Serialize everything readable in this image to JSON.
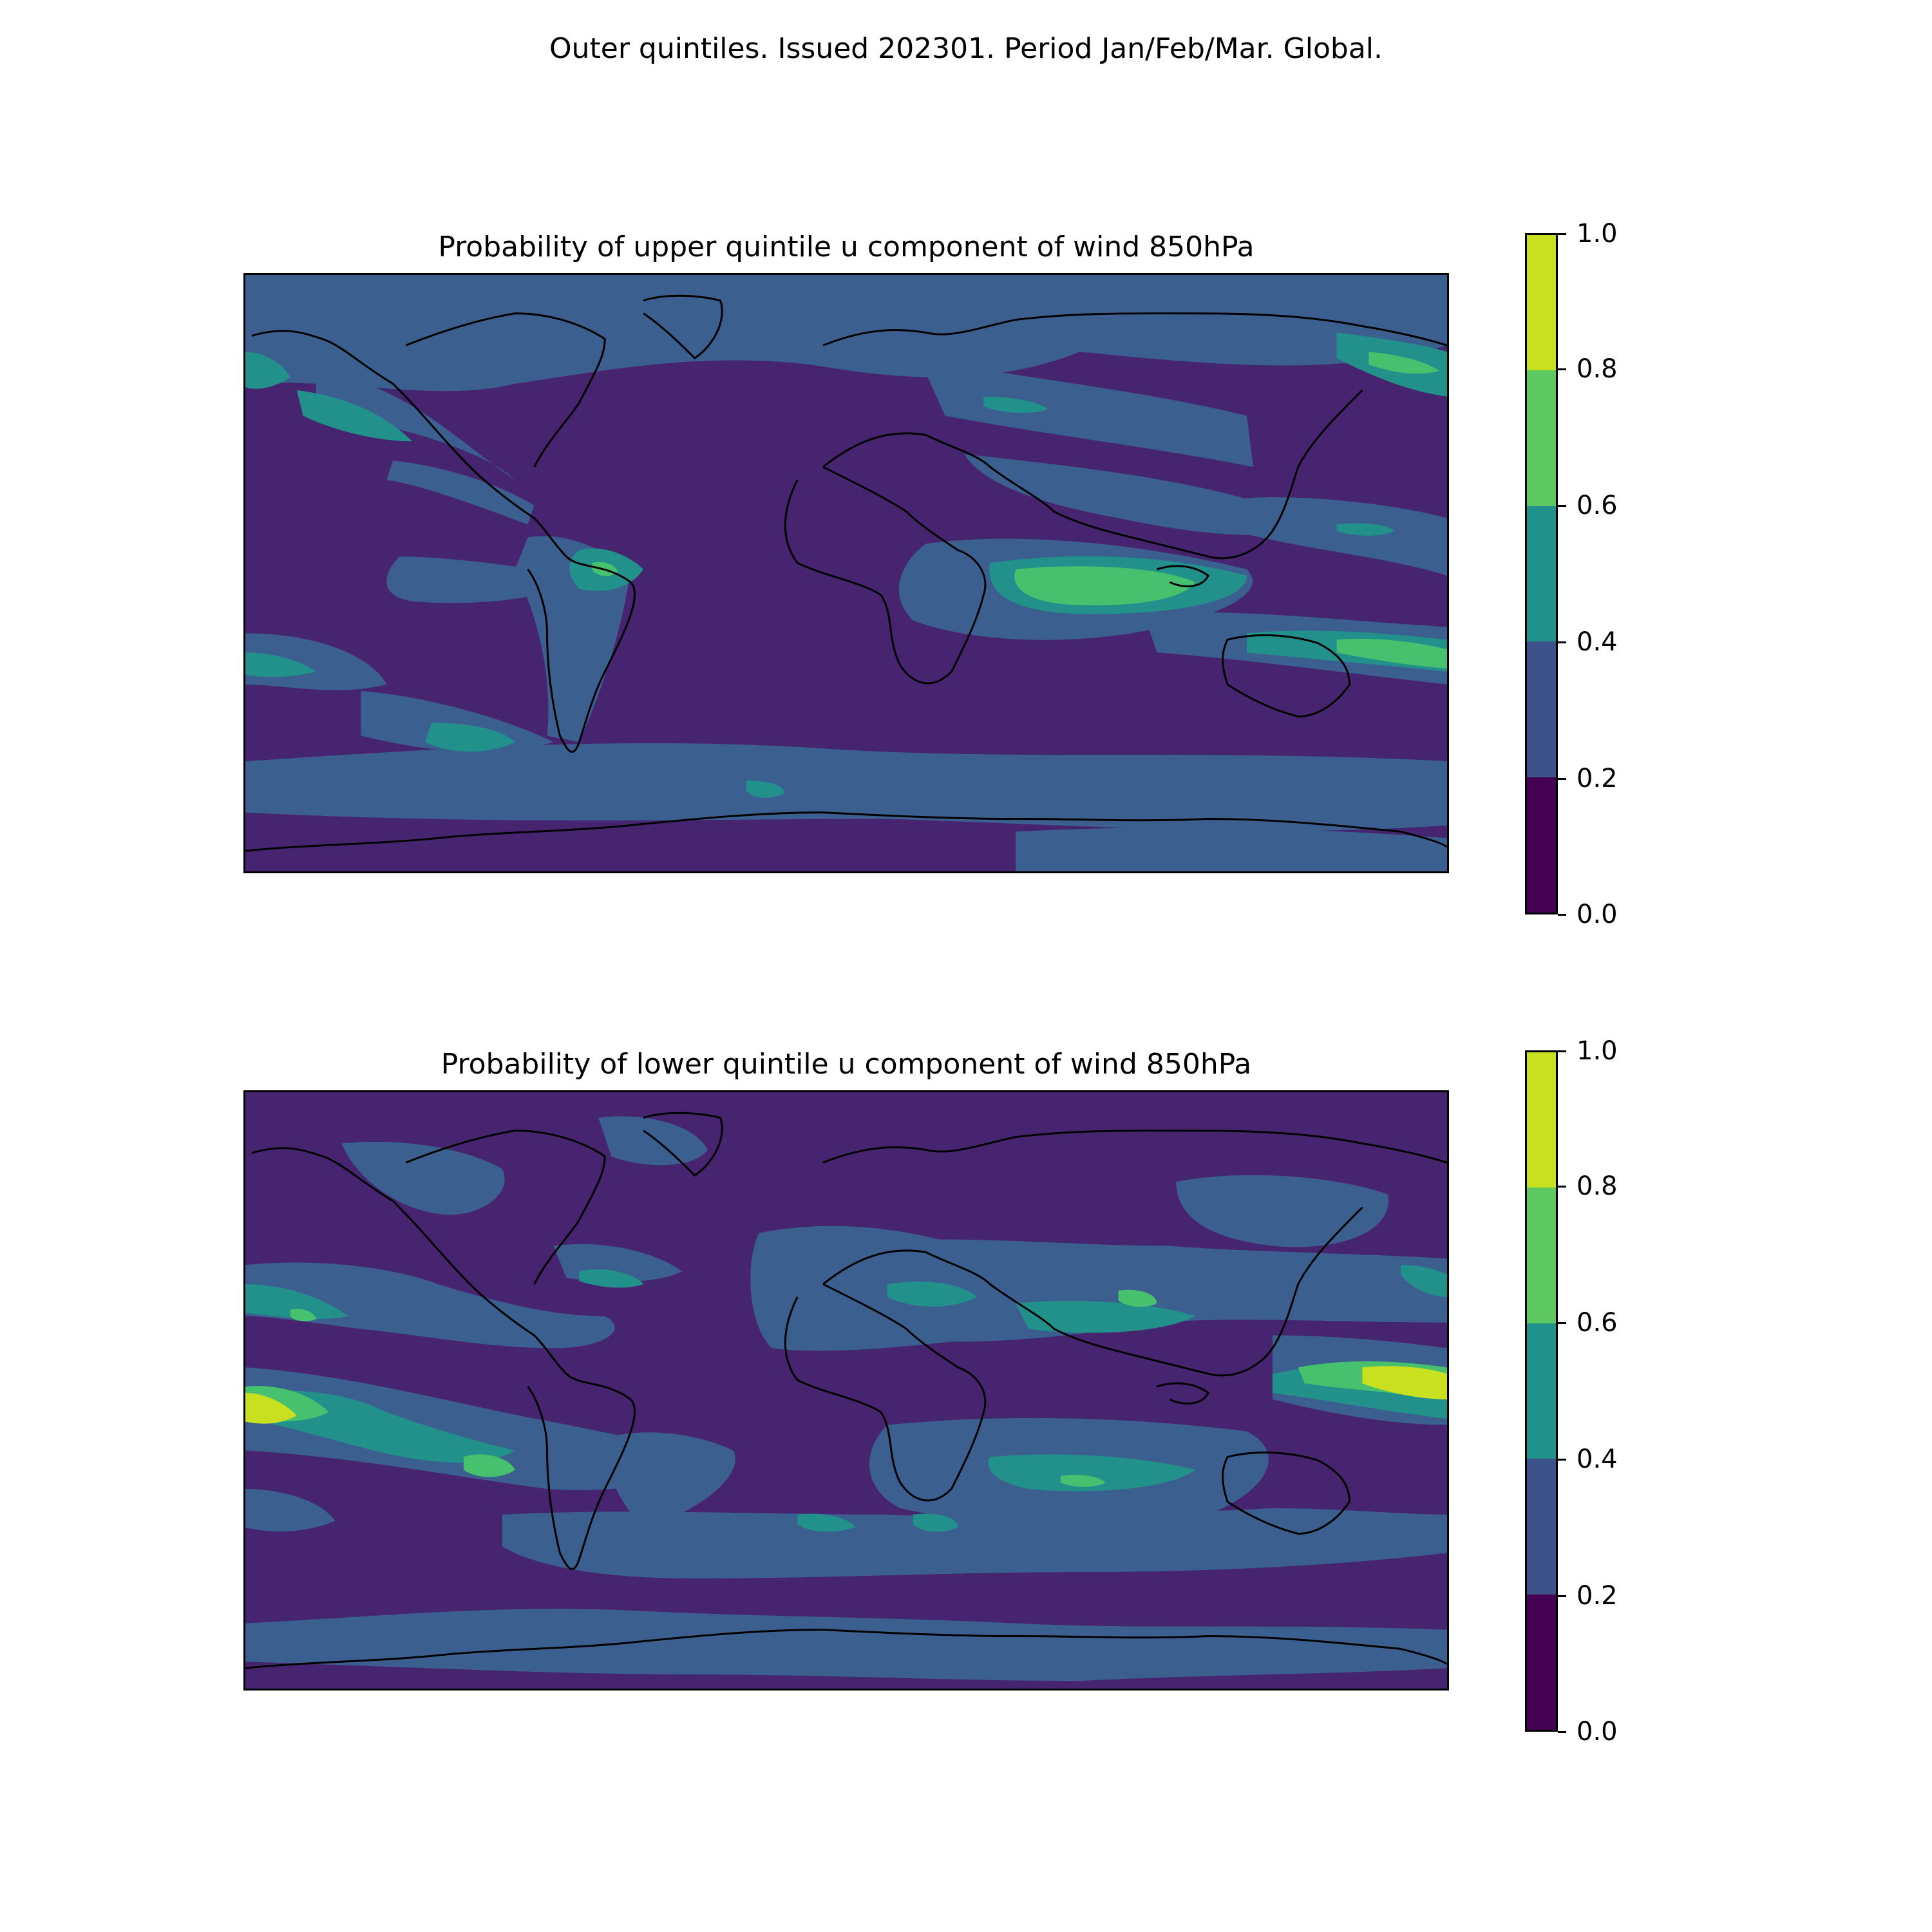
{
  "figure": {
    "suptitle": "Outer quintiles. Issued 202301. Period Jan/Feb/Mar. Global."
  },
  "colorbar": {
    "ticks": [
      "0.0",
      "0.2",
      "0.4",
      "0.6",
      "0.8",
      "1.0"
    ],
    "colors": [
      "#440154",
      "#3b528b",
      "#21918c",
      "#5ec962",
      "#c8e020"
    ]
  },
  "panels": [
    {
      "title": "Probability of upper quintile u component of wind 850hPa",
      "map_note": "viridis contour fill 0.0–1.0, PlateCarree global projection with coastlines"
    },
    {
      "title": "Probability of lower quintile u component of wind 850hPa",
      "map_note": "viridis contour fill 0.0–1.0, PlateCarree global projection with coastlines"
    }
  ]
}
